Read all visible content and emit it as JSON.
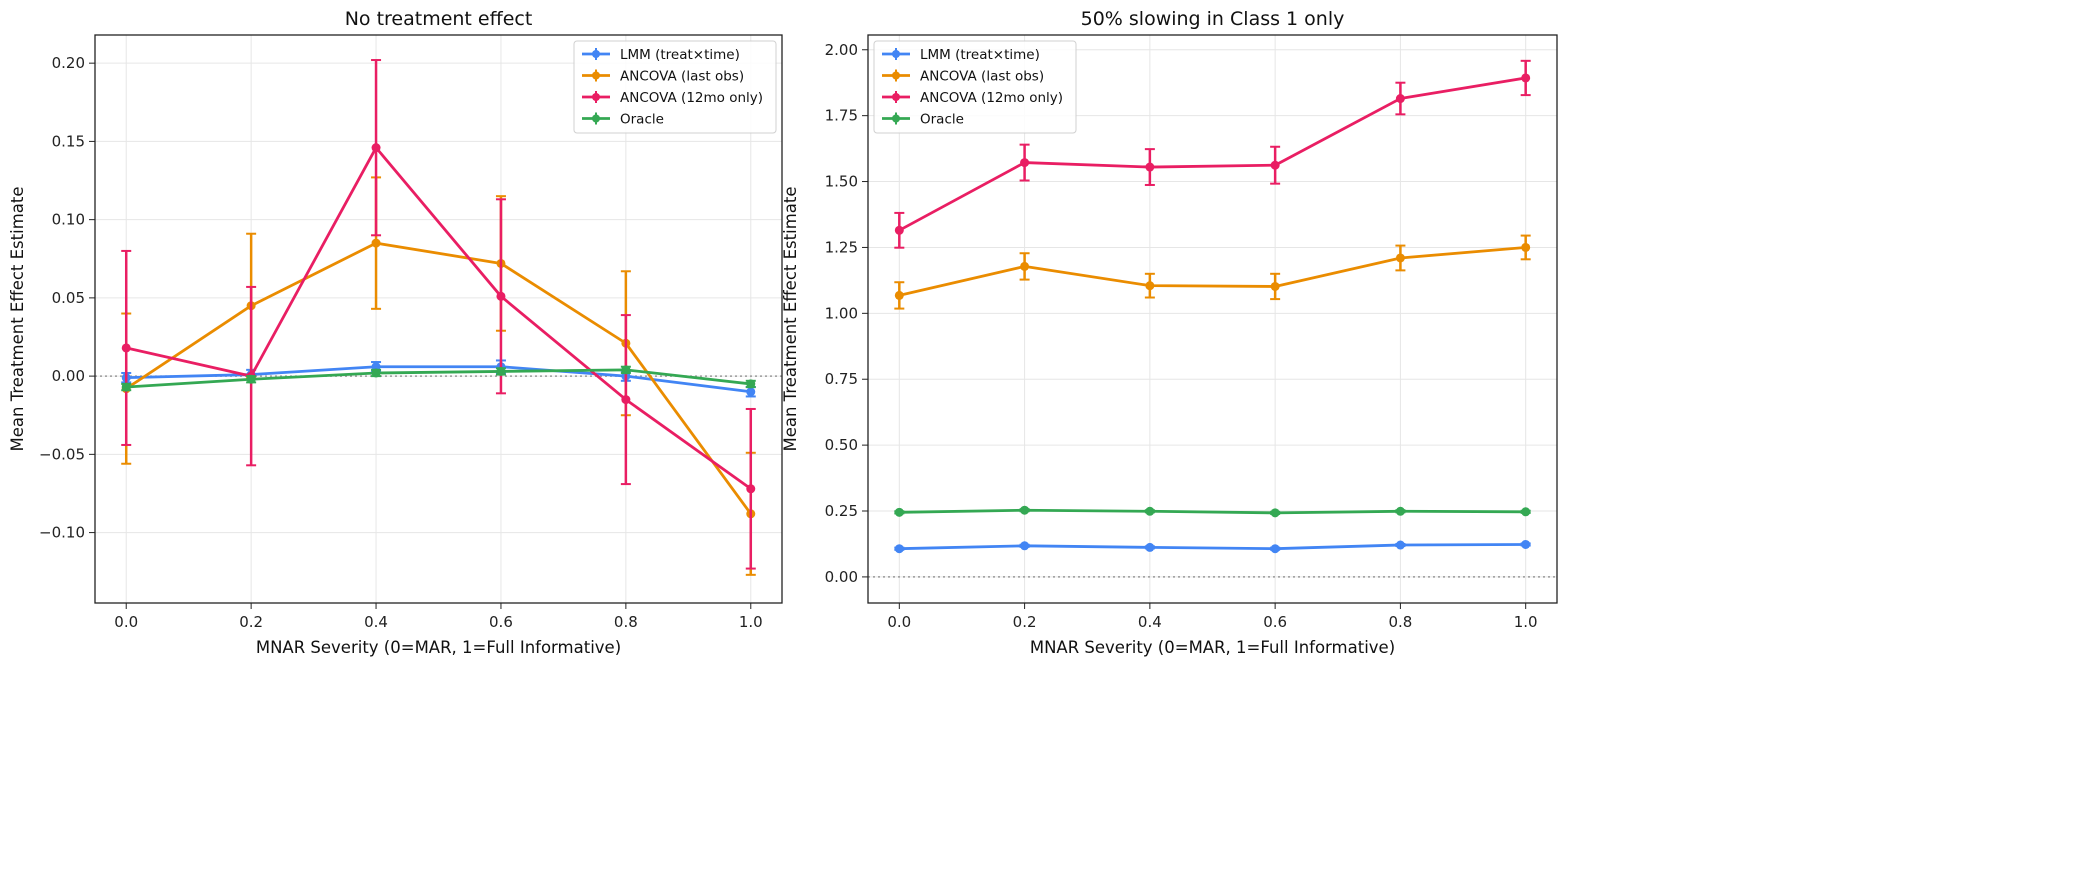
{
  "colors": {
    "LMM (treat×time)": "#4285f4",
    "ANCOVA (last obs)": "#ea8c00",
    "ANCOVA (12mo only)": "#e91e63",
    "Oracle": "#34a853"
  },
  "chart_data": [
    {
      "type": "line",
      "title": "No treatment effect",
      "xlabel": "MNAR Severity (0=MAR, 1=Full Informative)",
      "ylabel": "Mean Treatment Effect Estimate",
      "x": [
        0.0,
        0.2,
        0.4,
        0.6,
        0.8,
        1.0
      ],
      "xticks": [
        "0.0",
        "0.2",
        "0.4",
        "0.6",
        "0.8",
        "1.0"
      ],
      "yticks": [
        -0.1,
        -0.05,
        0.0,
        0.05,
        0.1,
        0.15,
        0.2
      ],
      "ytick_labels": [
        "−0.10",
        "−0.05",
        "0.00",
        "0.05",
        "0.10",
        "0.15",
        "0.20"
      ],
      "xlim": [
        -0.05,
        1.05
      ],
      "ylim": [
        -0.145,
        0.218
      ],
      "grid": true,
      "reference_line": 0,
      "legend_position": "top-right",
      "series": [
        {
          "name": "LMM (treat×time)",
          "values": [
            -0.001,
            0.001,
            0.006,
            0.006,
            0.0,
            -0.01
          ],
          "errors": [
            0.003,
            0.003,
            0.003,
            0.004,
            0.003,
            0.003
          ]
        },
        {
          "name": "ANCOVA (last obs)",
          "values": [
            -0.008,
            0.045,
            0.085,
            0.072,
            0.021,
            -0.088
          ],
          "errors": [
            0.048,
            0.046,
            0.042,
            0.043,
            0.046,
            0.039
          ]
        },
        {
          "name": "ANCOVA (12mo only)",
          "values": [
            0.018,
            0.0,
            0.146,
            0.051,
            -0.015,
            -0.072
          ],
          "errors": [
            0.062,
            0.057,
            0.056,
            0.062,
            0.054,
            0.051
          ]
        },
        {
          "name": "Oracle",
          "values": [
            -0.007,
            -0.002,
            0.002,
            0.003,
            0.004,
            -0.005
          ],
          "errors": [
            0.002,
            0.002,
            0.002,
            0.002,
            0.002,
            0.002
          ]
        }
      ]
    },
    {
      "type": "line",
      "title": "50% slowing in Class 1 only",
      "xlabel": "MNAR Severity (0=MAR, 1=Full Informative)",
      "ylabel": "Mean Treatment Effect Estimate",
      "x": [
        0.0,
        0.2,
        0.4,
        0.6,
        0.8,
        1.0
      ],
      "xticks": [
        "0.0",
        "0.2",
        "0.4",
        "0.6",
        "0.8",
        "1.0"
      ],
      "yticks": [
        0.0,
        0.25,
        0.5,
        0.75,
        1.0,
        1.25,
        1.5,
        1.75,
        2.0
      ],
      "ytick_labels": [
        "0.00",
        "0.25",
        "0.50",
        "0.75",
        "1.00",
        "1.25",
        "1.50",
        "1.75",
        "2.00"
      ],
      "xlim": [
        -0.05,
        1.05
      ],
      "ylim": [
        -0.099,
        2.056
      ],
      "grid": true,
      "reference_line": 0,
      "legend_position": "top-left",
      "series": [
        {
          "name": "LMM (treat×time)",
          "values": [
            0.107,
            0.118,
            0.112,
            0.107,
            0.121,
            0.123
          ],
          "errors": [
            0.004,
            0.004,
            0.004,
            0.004,
            0.004,
            0.004
          ]
        },
        {
          "name": "ANCOVA (last obs)",
          "values": [
            1.068,
            1.178,
            1.105,
            1.102,
            1.21,
            1.25
          ],
          "errors": [
            0.05,
            0.05,
            0.045,
            0.048,
            0.047,
            0.045
          ]
        },
        {
          "name": "ANCOVA (12mo only)",
          "values": [
            1.315,
            1.572,
            1.555,
            1.562,
            1.815,
            1.893
          ],
          "errors": [
            0.066,
            0.068,
            0.068,
            0.07,
            0.06,
            0.065
          ]
        },
        {
          "name": "Oracle",
          "values": [
            0.245,
            0.253,
            0.249,
            0.243,
            0.249,
            0.247
          ],
          "errors": [
            0.004,
            0.004,
            0.004,
            0.004,
            0.004,
            0.004
          ]
        }
      ]
    }
  ]
}
